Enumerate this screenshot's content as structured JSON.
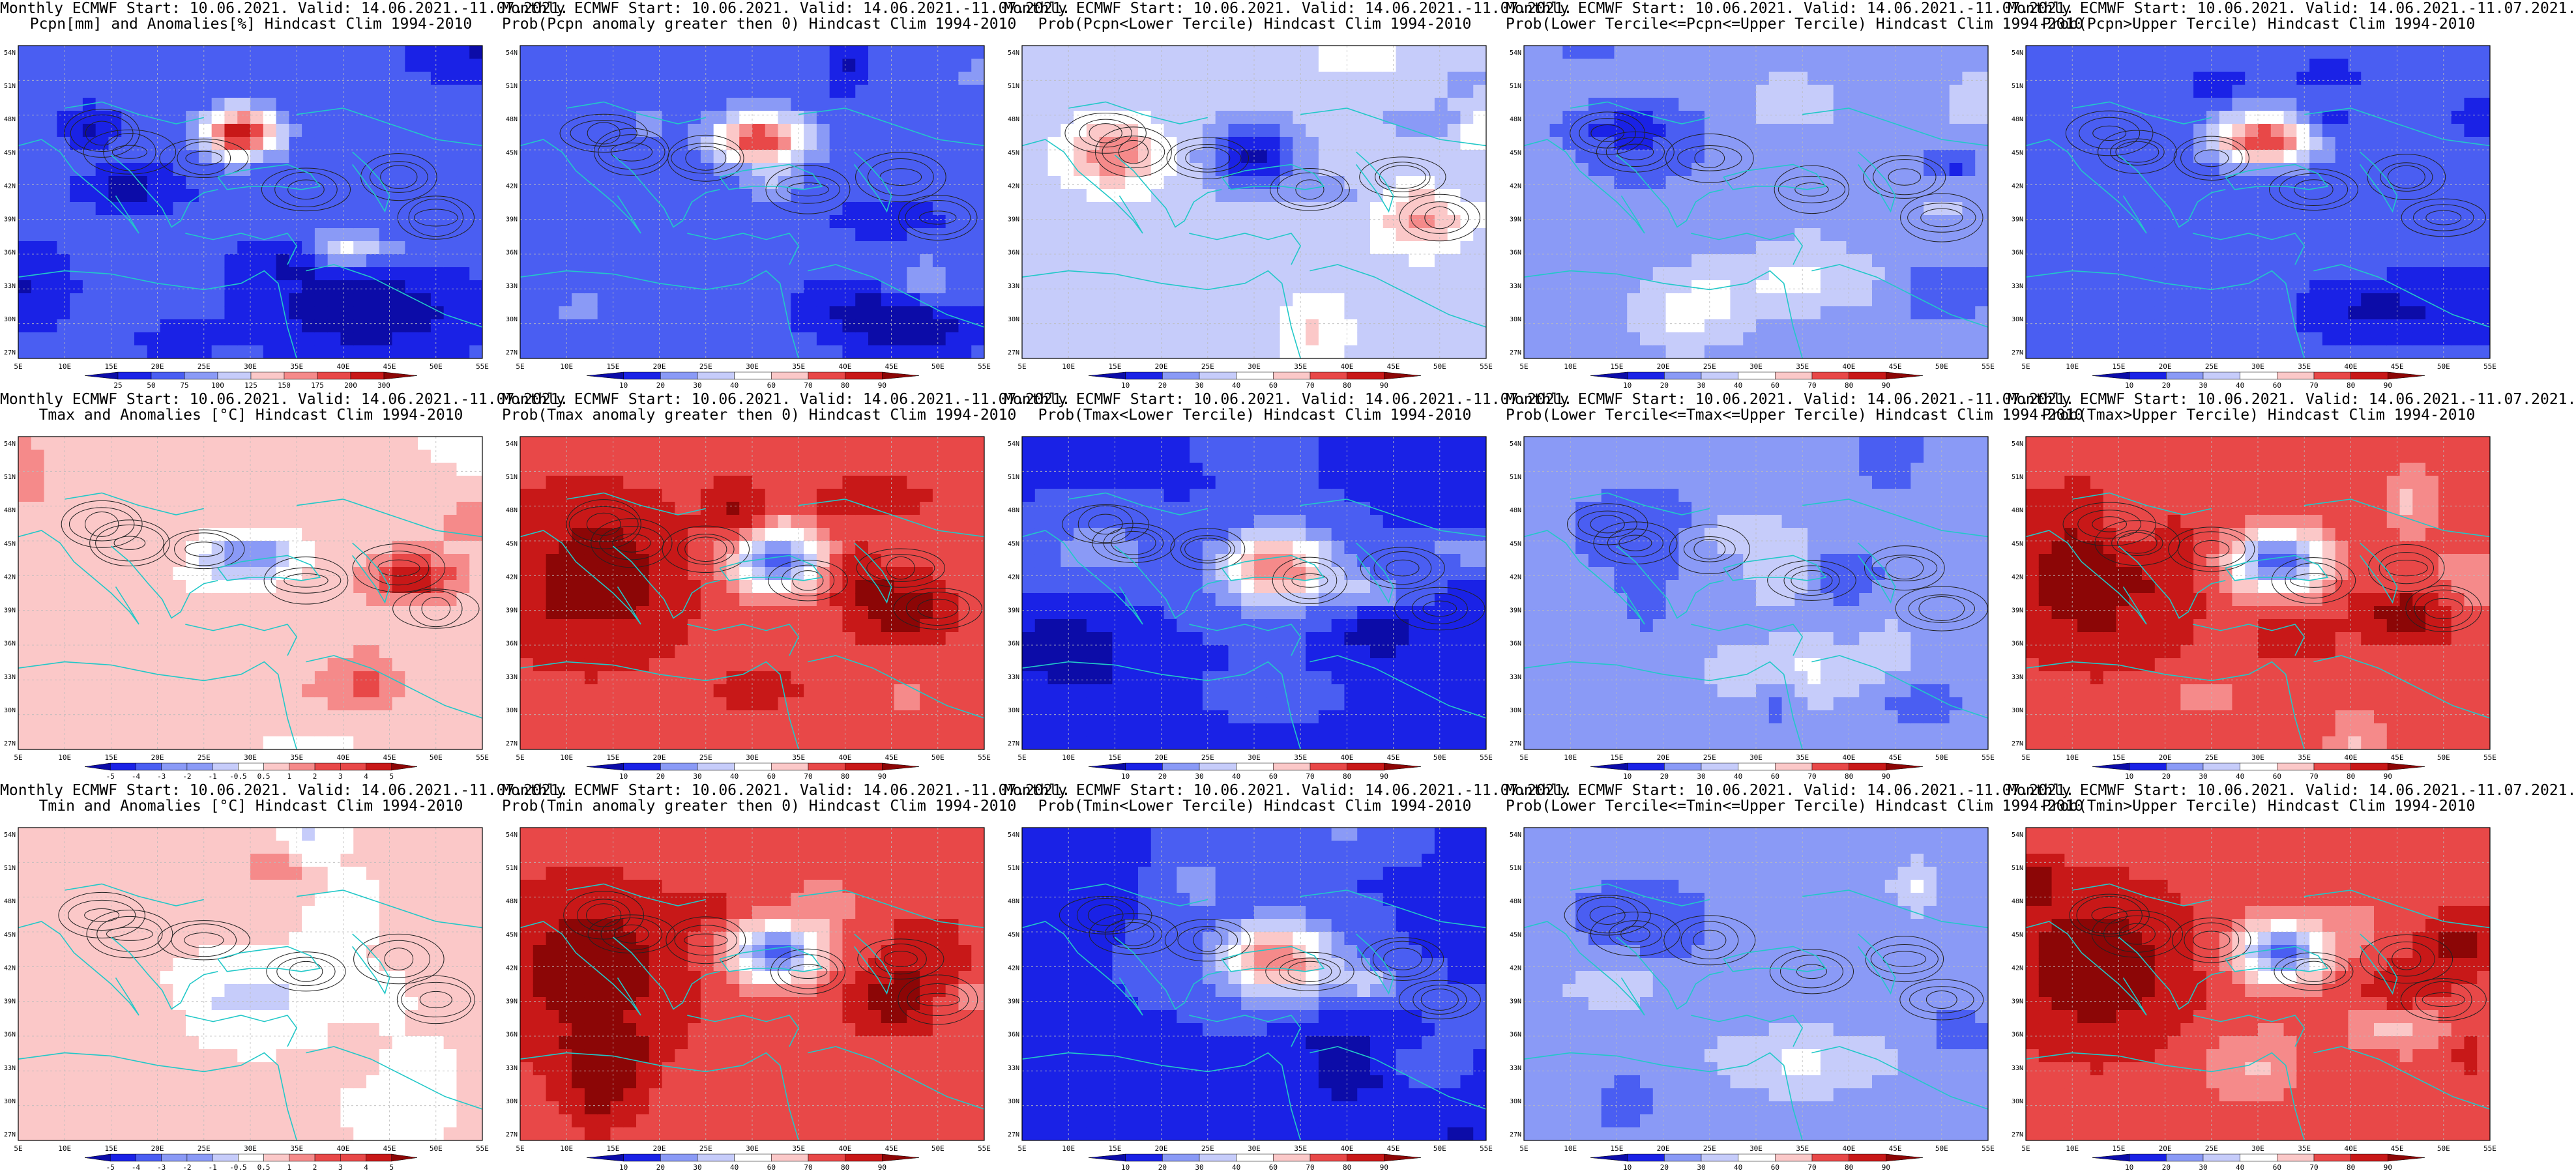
{
  "header_line": "Monthly ECMWF Start: 10.06.2021. Valid: 14.06.2021.-11.07.2021.",
  "map": {
    "lon_ticks": [
      "5E",
      "10E",
      "15E",
      "20E",
      "25E",
      "30E",
      "35E",
      "40E",
      "45E",
      "50E",
      "55E"
    ],
    "lat_ticks": [
      "54N",
      "51N",
      "48N",
      "45N",
      "42N",
      "39N",
      "36N",
      "33N",
      "30N",
      "27N"
    ]
  },
  "colors": {
    "coast": "#22c8c8",
    "contour": "#222222",
    "ramp_blue_red": [
      "#0c0ca8",
      "#1a22e6",
      "#4a5ef2",
      "#8a9af6",
      "#c6ccfa",
      "#ffffff",
      "#fbc8c8",
      "#f58a8a",
      "#e84848",
      "#c81818",
      "#8c0606"
    ]
  },
  "panels": [
    {
      "id": "pcpn_anom",
      "subtitle": "Pcpn[mm] and Anomalies[%] Hindcast Clim 1994-2010",
      "cbar_labels": [
        "25",
        "50",
        "75",
        "100",
        "125",
        "150",
        "175",
        "200",
        "300"
      ],
      "scheme": "anom_pcpn"
    },
    {
      "id": "pcpn_gt0",
      "subtitle": "Prob(Pcpn anomaly greater then 0) Hindcast Clim 1994-2010",
      "cbar_labels": [
        "10",
        "20",
        "30",
        "40",
        "60",
        "70",
        "80",
        "90"
      ],
      "scheme": "prob_dry"
    },
    {
      "id": "pcpn_lower",
      "subtitle": "Prob(Pcpn<Lower Tercile) Hindcast Clim 1994-2010",
      "cbar_labels": [
        "10",
        "20",
        "30",
        "40",
        "60",
        "70",
        "80",
        "90"
      ],
      "scheme": "prob_lower_pcpn"
    },
    {
      "id": "pcpn_mid",
      "subtitle": "Prob(Lower Tercile<=Pcpn<=Upper Tercile) Hindcast Clim 1994-2010",
      "cbar_labels": [
        "10",
        "20",
        "30",
        "40",
        "60",
        "70",
        "80",
        "90"
      ],
      "scheme": "prob_mid"
    },
    {
      "id": "pcpn_upper",
      "subtitle": "Prob(Pcpn>Upper Tercile) Hindcast Clim 1994-2010",
      "cbar_labels": [
        "10",
        "20",
        "30",
        "40",
        "60",
        "70",
        "80",
        "90"
      ],
      "scheme": "prob_dry"
    },
    {
      "id": "tmax_anom",
      "subtitle": "Tmax and Anomalies [°C] Hindcast Clim 1994-2010",
      "cbar_labels": [
        "-5",
        "-4",
        "-3",
        "-2",
        "-1",
        "-0.5",
        "0.5",
        "1",
        "2",
        "3",
        "4",
        "5"
      ],
      "scheme": "anom_warm"
    },
    {
      "id": "tmax_gt0",
      "subtitle": "Prob(Tmax anomaly greater then 0) Hindcast Clim 1994-2010",
      "cbar_labels": [
        "10",
        "20",
        "30",
        "40",
        "60",
        "70",
        "80",
        "90"
      ],
      "scheme": "prob_warm"
    },
    {
      "id": "tmax_lower",
      "subtitle": "Prob(Tmax<Lower Tercile) Hindcast Clim 1994-2010",
      "cbar_labels": [
        "10",
        "20",
        "30",
        "40",
        "60",
        "70",
        "80",
        "90"
      ],
      "scheme": "prob_cold"
    },
    {
      "id": "tmax_mid",
      "subtitle": "Prob(Lower Tercile<=Tmax<=Upper Tercile) Hindcast Clim 1994-2010",
      "cbar_labels": [
        "10",
        "20",
        "30",
        "40",
        "60",
        "70",
        "80",
        "90"
      ],
      "scheme": "prob_mid"
    },
    {
      "id": "tmax_upper",
      "subtitle": "Prob(Tmax>Upper Tercile) Hindcast Clim 1994-2010",
      "cbar_labels": [
        "10",
        "20",
        "30",
        "40",
        "60",
        "70",
        "80",
        "90"
      ],
      "scheme": "prob_warm"
    },
    {
      "id": "tmin_anom",
      "subtitle": "Tmin and Anomalies [°C] Hindcast Clim 1994-2010",
      "cbar_labels": [
        "-5",
        "-4",
        "-3",
        "-2",
        "-1",
        "-0.5",
        "0.5",
        "1",
        "2",
        "3",
        "4",
        "5"
      ],
      "scheme": "anom_warm_light"
    },
    {
      "id": "tmin_gt0",
      "subtitle": "Prob(Tmin anomaly greater then 0) Hindcast Clim 1994-2010",
      "cbar_labels": [
        "10",
        "20",
        "30",
        "40",
        "60",
        "70",
        "80",
        "90"
      ],
      "scheme": "prob_warm"
    },
    {
      "id": "tmin_lower",
      "subtitle": "Prob(Tmin<Lower Tercile) Hindcast Clim 1994-2010",
      "cbar_labels": [
        "10",
        "20",
        "30",
        "40",
        "60",
        "70",
        "80",
        "90"
      ],
      "scheme": "prob_cold"
    },
    {
      "id": "tmin_mid",
      "subtitle": "Prob(Lower Tercile<=Tmin<=Upper Tercile) Hindcast Clim 1994-2010",
      "cbar_labels": [
        "10",
        "20",
        "30",
        "40",
        "60",
        "70",
        "80",
        "90"
      ],
      "scheme": "prob_mid"
    },
    {
      "id": "tmin_upper",
      "subtitle": "Prob(Tmin>Upper Tercile) Hindcast Clim 1994-2010",
      "cbar_labels": [
        "10",
        "20",
        "30",
        "40",
        "60",
        "70",
        "80",
        "90"
      ],
      "scheme": "prob_warm"
    }
  ],
  "chart_data": {
    "type": "heatmap",
    "title": "Monthly ECMWF Start: 10.06.2021. Valid: 14.06.2021.-11.07.2021.",
    "grid": "3 rows x 5 columns of map panels",
    "region": {
      "lon": [
        "5E",
        "55E"
      ],
      "lat": [
        "27N",
        "54N"
      ]
    },
    "rows": [
      "Pcpn",
      "Tmax",
      "Tmin"
    ],
    "columns": [
      "Anomalies",
      "Prob(anomaly greater then 0)",
      "Prob(<Lower Tercile)",
      "Prob(Lower Tercile<=x<=Upper Tercile)",
      "Prob(>Upper Tercile)"
    ],
    "colorbar_probability": [
      "10",
      "20",
      "30",
      "40",
      "60",
      "70",
      "80",
      "90"
    ],
    "colorbar_temperature_anomaly": [
      "-5",
      "-4",
      "-3",
      "-2",
      "-1",
      "-0.5",
      "0.5",
      "1",
      "2",
      "3",
      "4",
      "5"
    ],
    "colorbar_precip_anomaly": [
      "25",
      "50",
      "75",
      "100",
      "125",
      "150",
      "175",
      "200",
      "300"
    ]
  }
}
